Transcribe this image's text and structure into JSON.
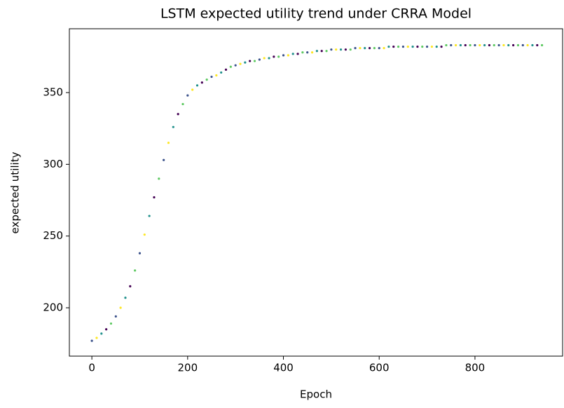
{
  "chart_data": {
    "type": "scatter",
    "title": "LSTM expected utility trend under CRRA Model",
    "xlabel": "Epoch",
    "ylabel": "expected utility",
    "xlim": [
      -47,
      983
    ],
    "ylim": [
      166.3,
      394.5
    ],
    "xticks": [
      0,
      200,
      400,
      600,
      800
    ],
    "yticks": [
      200,
      250,
      300,
      350
    ],
    "palette": [
      "#440154",
      "#3b528b",
      "#21918c",
      "#5ec962",
      "#fde725"
    ],
    "series": [
      {
        "name": "expected utility",
        "x": [
          0,
          10,
          20,
          30,
          40,
          50,
          60,
          70,
          80,
          90,
          100,
          110,
          120,
          130,
          140,
          150,
          160,
          170,
          180,
          190,
          200,
          210,
          220,
          230,
          240,
          250,
          260,
          270,
          280,
          290,
          300,
          310,
          320,
          330,
          340,
          350,
          360,
          370,
          380,
          390,
          400,
          410,
          420,
          430,
          440,
          450,
          460,
          470,
          480,
          490,
          500,
          510,
          520,
          530,
          540,
          550,
          560,
          570,
          580,
          590,
          600,
          610,
          620,
          630,
          640,
          650,
          660,
          670,
          680,
          690,
          700,
          710,
          720,
          730,
          740,
          750,
          760,
          770,
          780,
          790,
          800,
          810,
          820,
          830,
          840,
          850,
          860,
          870,
          880,
          890,
          900,
          910,
          920,
          930,
          940
        ],
        "values": [
          177,
          179,
          182,
          185,
          189,
          194,
          200,
          207,
          215,
          226,
          238,
          251,
          264,
          277,
          290,
          303,
          315,
          326,
          335,
          342,
          348,
          352,
          355,
          357,
          359,
          361,
          362,
          364,
          366,
          368,
          369,
          370,
          371,
          372,
          372,
          373,
          374,
          374,
          375,
          375,
          376,
          376,
          377,
          377,
          378,
          378,
          378,
          379,
          379,
          379,
          380,
          380,
          380,
          380,
          380,
          381,
          381,
          381,
          381,
          381,
          381,
          381,
          382,
          382,
          382,
          382,
          382,
          382,
          382,
          382,
          382,
          382,
          382,
          382,
          383,
          383,
          383,
          383,
          383,
          383,
          383,
          383,
          383,
          383,
          383,
          383,
          383,
          383,
          383,
          383,
          383,
          383,
          383,
          383,
          383
        ]
      }
    ]
  }
}
